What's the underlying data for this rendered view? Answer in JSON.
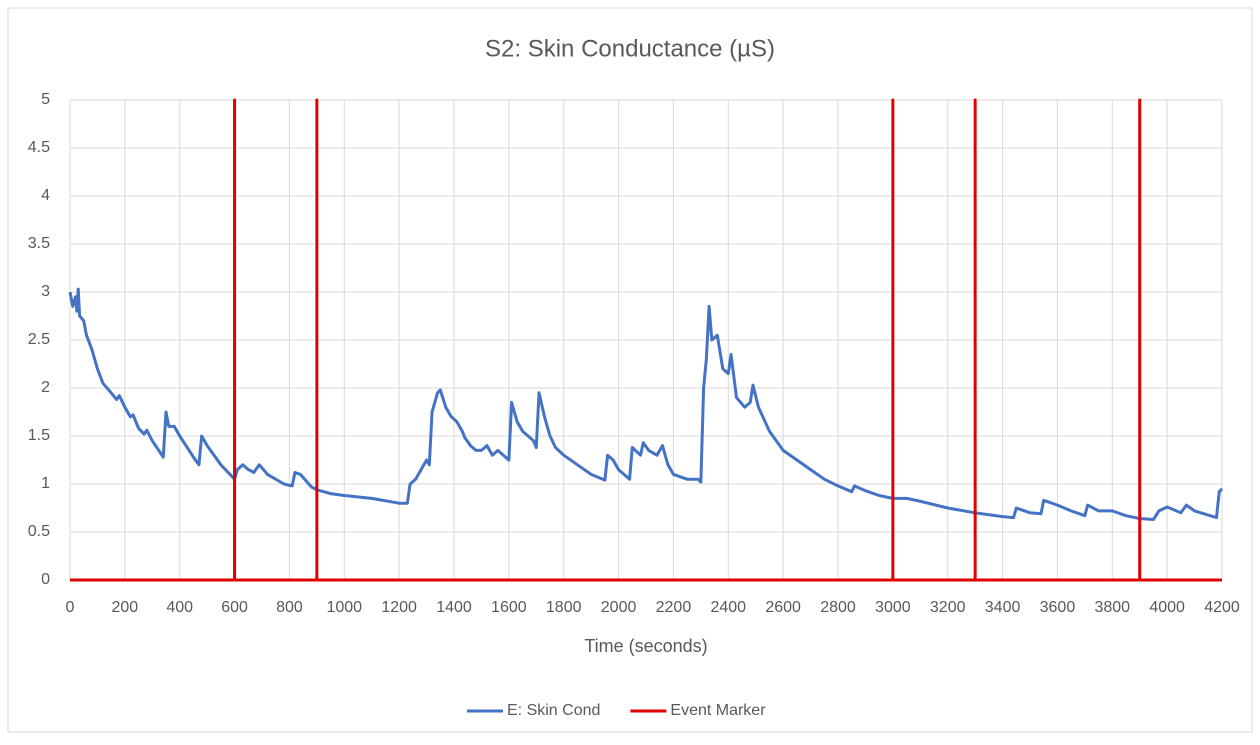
{
  "chart_data": {
    "type": "line",
    "title": "S2: Skin Conductance (µS)",
    "x_label": "Time (seconds)",
    "xlim": [
      0,
      4200
    ],
    "xticks": [
      0,
      200,
      400,
      600,
      800,
      1000,
      1200,
      1400,
      1600,
      1800,
      2000,
      2200,
      2400,
      2600,
      2800,
      3000,
      3200,
      3400,
      3600,
      3800,
      4000,
      4200
    ],
    "ylim": [
      0,
      5
    ],
    "yticks": [
      0,
      0.5,
      1,
      1.5,
      2,
      2.5,
      3,
      3.5,
      4,
      4.5,
      5
    ],
    "grid": true,
    "legend": "bottom",
    "series": [
      {
        "name": "E: Skin Cond",
        "color": "#4472c4",
        "x": [
          0,
          10,
          20,
          25,
          30,
          35,
          50,
          60,
          80,
          100,
          120,
          150,
          170,
          180,
          200,
          220,
          230,
          250,
          270,
          280,
          300,
          340,
          350,
          360,
          380,
          400,
          450,
          470,
          480,
          500,
          550,
          600,
          610,
          630,
          650,
          670,
          690,
          720,
          780,
          810,
          820,
          840,
          880,
          900,
          950,
          1000,
          1100,
          1200,
          1230,
          1240,
          1260,
          1280,
          1300,
          1310,
          1320,
          1340,
          1350,
          1370,
          1390,
          1410,
          1430,
          1440,
          1460,
          1480,
          1500,
          1520,
          1540,
          1560,
          1580,
          1600,
          1610,
          1630,
          1650,
          1670,
          1690,
          1700,
          1710,
          1730,
          1750,
          1770,
          1800,
          1850,
          1900,
          1950,
          1960,
          1980,
          2000,
          2040,
          2050,
          2080,
          2090,
          2110,
          2140,
          2160,
          2180,
          2200,
          2250,
          2290,
          2300,
          2310,
          2320,
          2330,
          2340,
          2360,
          2380,
          2400,
          2410,
          2430,
          2460,
          2480,
          2490,
          2510,
          2550,
          2600,
          2650,
          2700,
          2750,
          2800,
          2850,
          2860,
          2900,
          2950,
          3000,
          3050,
          3100,
          3200,
          3300,
          3400,
          3440,
          3450,
          3500,
          3540,
          3550,
          3600,
          3650,
          3700,
          3710,
          3750,
          3800,
          3850,
          3900,
          3950,
          3970,
          4000,
          4050,
          4070,
          4100,
          4180,
          4190,
          4200
        ],
        "values": [
          3.0,
          2.85,
          2.95,
          2.8,
          3.03,
          2.75,
          2.7,
          2.55,
          2.4,
          2.2,
          2.05,
          1.95,
          1.88,
          1.92,
          1.8,
          1.7,
          1.72,
          1.58,
          1.52,
          1.56,
          1.45,
          1.28,
          1.75,
          1.6,
          1.6,
          1.5,
          1.28,
          1.2,
          1.5,
          1.4,
          1.2,
          1.05,
          1.15,
          1.2,
          1.15,
          1.12,
          1.2,
          1.1,
          1.0,
          0.98,
          1.12,
          1.1,
          0.97,
          0.94,
          0.9,
          0.88,
          0.85,
          0.8,
          0.8,
          1.0,
          1.05,
          1.15,
          1.25,
          1.2,
          1.75,
          1.95,
          1.98,
          1.8,
          1.7,
          1.65,
          1.55,
          1.48,
          1.4,
          1.35,
          1.35,
          1.4,
          1.3,
          1.35,
          1.3,
          1.25,
          1.85,
          1.65,
          1.55,
          1.5,
          1.45,
          1.38,
          1.95,
          1.7,
          1.5,
          1.38,
          1.3,
          1.2,
          1.1,
          1.04,
          1.3,
          1.25,
          1.15,
          1.05,
          1.38,
          1.3,
          1.43,
          1.35,
          1.3,
          1.4,
          1.2,
          1.1,
          1.05,
          1.05,
          1.02,
          2.0,
          2.3,
          2.85,
          2.5,
          2.55,
          2.2,
          2.15,
          2.35,
          1.9,
          1.8,
          1.85,
          2.03,
          1.8,
          1.55,
          1.35,
          1.25,
          1.15,
          1.05,
          0.98,
          0.92,
          0.98,
          0.93,
          0.88,
          0.85,
          0.85,
          0.82,
          0.75,
          0.7,
          0.66,
          0.65,
          0.75,
          0.7,
          0.69,
          0.83,
          0.78,
          0.72,
          0.67,
          0.78,
          0.72,
          0.72,
          0.67,
          0.64,
          0.63,
          0.72,
          0.76,
          0.7,
          0.78,
          0.72,
          0.65,
          0.92,
          0.95
        ]
      },
      {
        "name": "Event Marker",
        "color": "#e00000",
        "x": [
          0,
          600,
          600,
          600,
          900,
          900,
          900,
          3000,
          3000,
          3000,
          3300,
          3300,
          3300,
          3900,
          3900,
          3900,
          4200
        ],
        "values": [
          0,
          0,
          5,
          0,
          0,
          5,
          0,
          0,
          5,
          0,
          0,
          5,
          0,
          0,
          5,
          0,
          0
        ]
      }
    ]
  }
}
